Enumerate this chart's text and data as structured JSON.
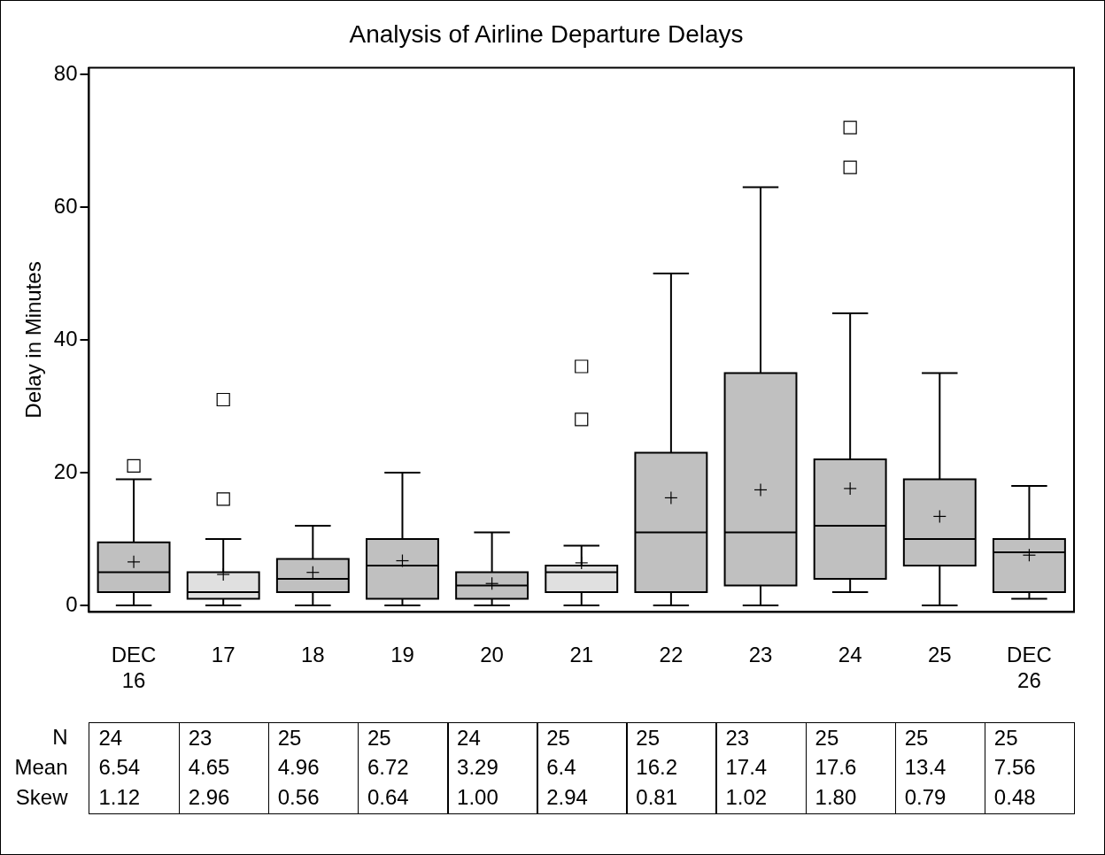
{
  "chart_data": [
    {
      "type": "box",
      "title": "Analysis of Airline Departure Delays",
      "ylabel": "Delay in Minutes",
      "categories": [
        "DEC 16",
        "17",
        "18",
        "19",
        "20",
        "21",
        "22",
        "23",
        "24",
        "25",
        "DEC 26"
      ],
      "colors": [
        "#c0c0c0",
        "#e0e0e0",
        "#c0c0c0",
        "#c0c0c0",
        "#c0c0c0",
        "#e0e0e0",
        "#c0c0c0",
        "#c0c0c0",
        "#c0c0c0",
        "#c0c0c0",
        "#c0c0c0"
      ],
      "boxes": [
        {
          "low": 0,
          "q1": 2,
          "median": 5,
          "q3": 9.5,
          "high": 19,
          "mean": 6.54,
          "outliers": [
            21
          ]
        },
        {
          "low": 0,
          "q1": 1,
          "median": 2,
          "q3": 5,
          "high": 10,
          "mean": 4.65,
          "outliers": [
            16,
            31
          ]
        },
        {
          "low": 0,
          "q1": 2,
          "median": 4,
          "q3": 7,
          "high": 12,
          "mean": 4.96
        },
        {
          "low": 0,
          "q1": 1,
          "median": 6,
          "q3": 10,
          "high": 20,
          "mean": 6.72
        },
        {
          "low": 0,
          "q1": 1,
          "median": 3,
          "q3": 5,
          "high": 11,
          "mean": 3.29
        },
        {
          "low": 0,
          "q1": 2,
          "median": 5,
          "q3": 6,
          "high": 9,
          "mean": 6.4,
          "outliers": [
            28,
            36
          ]
        },
        {
          "low": 0,
          "q1": 2,
          "median": 11,
          "q3": 23,
          "high": 50,
          "mean": 16.2
        },
        {
          "low": 0,
          "q1": 3,
          "median": 11,
          "q3": 35,
          "high": 63,
          "mean": 17.4
        },
        {
          "low": 2,
          "q1": 4,
          "median": 12,
          "q3": 22,
          "high": 44,
          "mean": 17.6,
          "outliers": [
            66,
            72
          ]
        },
        {
          "low": 0,
          "q1": 6,
          "median": 10,
          "q3": 19,
          "high": 35,
          "mean": 13.4
        },
        {
          "low": 1,
          "q1": 2,
          "median": 8,
          "q3": 10,
          "high": 18,
          "mean": 7.56
        }
      ],
      "ylim": [
        -1,
        81
      ],
      "yticks": [
        0,
        20,
        40,
        60,
        80
      ],
      "grid": false,
      "legend": false
    },
    {
      "type": "other",
      "y_categories": [
        "N",
        "Mean",
        "Skew"
      ],
      "cell_labels": [
        [
          "24",
          "23",
          "25",
          "25",
          "24",
          "25",
          "25",
          "23",
          "25",
          "25",
          "25"
        ],
        [
          "6.54",
          "4.65",
          "4.96",
          "6.72",
          "3.29",
          "6.4",
          "16.2",
          "17.4",
          "17.6",
          "13.4",
          "7.56"
        ],
        [
          "1.12",
          "2.96",
          "0.56",
          "0.64",
          "1.00",
          "2.94",
          "0.81",
          "1.02",
          "1.80",
          "0.79",
          "0.48"
        ]
      ]
    }
  ]
}
